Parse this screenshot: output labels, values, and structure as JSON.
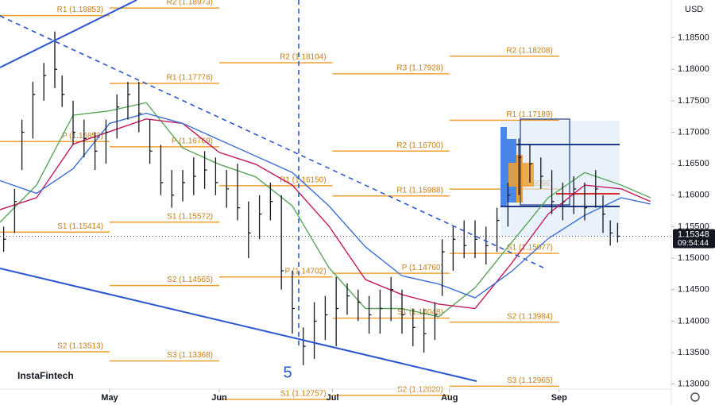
{
  "chart_data": {
    "type": "ohlc",
    "currency": "USD",
    "logo": "InstaFintech",
    "wave_label": "5",
    "last_price": 1.15348,
    "countdown": "09:54:44",
    "xlim": [
      0,
      183.7
    ],
    "ylim": [
      1.1292,
      1.191
    ],
    "xticks": [
      {
        "value": 30,
        "label": "May"
      },
      {
        "value": 60,
        "label": "Jun"
      },
      {
        "value": 91,
        "label": "Jul"
      },
      {
        "value": 123,
        "label": "Aug"
      },
      {
        "value": 153,
        "label": "Sep"
      }
    ],
    "yticks": [
      {
        "value": 1.13,
        "label": "1.13000"
      },
      {
        "value": 1.135,
        "label": "1.13500"
      },
      {
        "value": 1.14,
        "label": "1.14000"
      },
      {
        "value": 1.145,
        "label": "1.14500"
      },
      {
        "value": 1.15,
        "label": "1.15000"
      },
      {
        "value": 1.155,
        "label": "1.15500"
      },
      {
        "value": 1.16,
        "label": "1.16000"
      },
      {
        "value": 1.165,
        "label": "1.16500"
      },
      {
        "value": 1.17,
        "label": "1.17000"
      },
      {
        "value": 1.175,
        "label": "1.17500"
      },
      {
        "value": 1.18,
        "label": "1.18000"
      },
      {
        "value": 1.185,
        "label": "1.18500"
      }
    ],
    "bar_color": "#131722",
    "bars": {
      "x": [
        1,
        4,
        6,
        9,
        12,
        15,
        17,
        20,
        23,
        26,
        29,
        32,
        35,
        38,
        41,
        44,
        47,
        50,
        53,
        56,
        59,
        62,
        65,
        68,
        71,
        74,
        77,
        80,
        83,
        86,
        89,
        92,
        95,
        98,
        101,
        104,
        107,
        110,
        113,
        116,
        119,
        121,
        124,
        127,
        130,
        133,
        136,
        139,
        142,
        145,
        148,
        151,
        154,
        157,
        160,
        163,
        165,
        167,
        169
      ],
      "high": [
        1.155,
        1.161,
        1.172,
        1.178,
        1.181,
        1.186,
        1.179,
        1.175,
        1.172,
        1.17,
        1.172,
        1.176,
        1.178,
        1.178,
        1.172,
        1.168,
        1.164,
        1.164,
        1.166,
        1.167,
        1.166,
        1.164,
        1.165,
        1.159,
        1.16,
        1.162,
        1.16,
        1.148,
        1.139,
        1.143,
        1.144,
        1.147,
        1.146,
        1.145,
        1.144,
        1.145,
        1.147,
        1.145,
        1.142,
        1.142,
        1.143,
        1.153,
        1.155,
        1.156,
        1.156,
        1.155,
        1.158,
        1.162,
        1.169,
        1.168,
        1.166,
        1.164,
        1.162,
        1.163,
        1.162,
        1.164,
        1.16,
        1.156,
        1.1556
      ],
      "low": [
        1.151,
        1.154,
        1.164,
        1.169,
        1.175,
        1.177,
        1.174,
        1.168,
        1.166,
        1.164,
        1.165,
        1.169,
        1.172,
        1.17,
        1.165,
        1.16,
        1.158,
        1.159,
        1.16,
        1.161,
        1.16,
        1.158,
        1.156,
        1.15,
        1.153,
        1.156,
        1.145,
        1.138,
        1.133,
        1.134,
        1.137,
        1.136,
        1.141,
        1.14,
        1.138,
        1.138,
        1.14,
        1.138,
        1.136,
        1.135,
        1.137,
        1.144,
        1.148,
        1.15,
        1.15,
        1.149,
        1.151,
        1.155,
        1.16,
        1.162,
        1.161,
        1.157,
        1.156,
        1.157,
        1.156,
        1.158,
        1.154,
        1.152,
        1.1525
      ],
      "close": [
        1.153,
        1.159,
        1.17,
        1.176,
        1.179,
        1.18,
        1.176,
        1.17,
        1.169,
        1.167,
        1.17,
        1.174,
        1.176,
        1.173,
        1.167,
        1.162,
        1.16,
        1.162,
        1.163,
        1.164,
        1.162,
        1.161,
        1.158,
        1.154,
        1.157,
        1.159,
        1.148,
        1.142,
        1.136,
        1.14,
        1.141,
        1.142,
        1.144,
        1.143,
        1.141,
        1.142,
        1.145,
        1.141,
        1.139,
        1.138,
        1.141,
        1.151,
        1.153,
        1.152,
        1.153,
        1.152,
        1.156,
        1.16,
        1.166,
        1.165,
        1.163,
        1.159,
        1.159,
        1.161,
        1.158,
        1.161,
        1.157,
        1.154,
        1.15348
      ]
    },
    "ma_x": [
      0,
      10,
      20,
      30,
      40,
      50,
      60,
      70,
      80,
      90,
      100,
      110,
      120,
      130,
      140,
      150,
      160,
      170,
      178
    ],
    "moving_averages": [
      {
        "color": "#5aa55a",
        "values": [
          1.1557,
          1.1616,
          1.1727,
          1.1734,
          1.1747,
          1.1675,
          1.1649,
          1.1629,
          1.1583,
          1.1485,
          1.142,
          1.142,
          1.1407,
          1.1453,
          1.1525,
          1.1596,
          1.1636,
          1.1616,
          1.1596
        ]
      },
      {
        "color": "#c2185b",
        "values": [
          1.1577,
          1.1596,
          1.1681,
          1.1701,
          1.1721,
          1.1714,
          1.1668,
          1.1649,
          1.1616,
          1.1551,
          1.1466,
          1.1442,
          1.1427,
          1.142,
          1.1492,
          1.157,
          1.1616,
          1.161,
          1.159
        ]
      },
      {
        "color": "#3b6fd6",
        "values": [
          1.1623,
          1.1603,
          1.1642,
          1.1714,
          1.173,
          1.1714,
          1.1688,
          1.1662,
          1.1636,
          1.1583,
          1.1518,
          1.1472,
          1.1459,
          1.1437,
          1.1479,
          1.1531,
          1.1568,
          1.1596,
          1.1586
        ]
      }
    ],
    "pivot_color": "#f0a030",
    "pivots": [
      {
        "start": 0,
        "end": 30,
        "levels": [
          {
            "label": "R1 (1.18853)",
            "value": 1.18853
          },
          {
            "label": "P (1.16852)",
            "value": 1.16852
          },
          {
            "label": "S1 (1.15414)",
            "value": 1.15414
          },
          {
            "label": "S2 (1.13513)",
            "value": 1.13513
          }
        ]
      },
      {
        "start": 30,
        "end": 60,
        "levels": [
          {
            "label": "R2 (1.18973)",
            "value": 1.18973
          },
          {
            "label": "R1 (1.17776)",
            "value": 1.17776
          },
          {
            "label": "P (1.16769)",
            "value": 1.16769
          },
          {
            "label": "S1 (1.15572)",
            "value": 1.15572
          },
          {
            "label": "S2 (1.14565)",
            "value": 1.14565
          },
          {
            "label": "S3 (1.13368)",
            "value": 1.13368
          }
        ]
      },
      {
        "start": 60,
        "end": 91,
        "levels": [
          {
            "label": "R2 (1.18104)",
            "value": 1.18104
          },
          {
            "label": "R1 (1.16150)",
            "value": 1.1615
          },
          {
            "label": "P (1.14702)",
            "value": 1.14702
          },
          {
            "label": "S1 (1.12757)",
            "value": 1.12757
          }
        ]
      },
      {
        "start": 91,
        "end": 123,
        "levels": [
          {
            "label": "R3 (1.17928)",
            "value": 1.17928
          },
          {
            "label": "R2 (1.16700)",
            "value": 1.167
          },
          {
            "label": "R1 (1.15988)",
            "value": 1.15988
          },
          {
            "label": "P (1.14760)",
            "value": 1.1476
          },
          {
            "label": "S1 (1.14048)",
            "value": 1.14048
          },
          {
            "label": "S2 (1.12820)",
            "value": 1.1282
          }
        ]
      },
      {
        "start": 123,
        "end": 153,
        "levels": [
          {
            "label": "R2 (1.18208)",
            "value": 1.18208
          },
          {
            "label": "R1 (1.17189)",
            "value": 1.17189
          },
          {
            "label": "P (1.16096)",
            "value": 1.16096
          },
          {
            "label": "S1 (1.15077)",
            "value": 1.15077
          },
          {
            "label": "S2 (1.13984)",
            "value": 1.13984
          },
          {
            "label": "S3 (1.12965)",
            "value": 1.12965
          }
        ]
      }
    ]
  }
}
